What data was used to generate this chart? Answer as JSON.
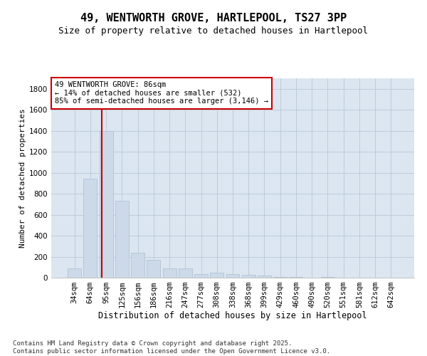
{
  "title1": "49, WENTWORTH GROVE, HARTLEPOOL, TS27 3PP",
  "title2": "Size of property relative to detached houses in Hartlepool",
  "xlabel": "Distribution of detached houses by size in Hartlepool",
  "ylabel": "Number of detached properties",
  "bins": [
    "34sqm",
    "64sqm",
    "95sqm",
    "125sqm",
    "156sqm",
    "186sqm",
    "216sqm",
    "247sqm",
    "277sqm",
    "308sqm",
    "338sqm",
    "368sqm",
    "399sqm",
    "429sqm",
    "460sqm",
    "490sqm",
    "520sqm",
    "551sqm",
    "581sqm",
    "612sqm",
    "642sqm"
  ],
  "values": [
    90,
    940,
    1400,
    730,
    240,
    170,
    90,
    90,
    35,
    50,
    35,
    30,
    20,
    10,
    5,
    0,
    5,
    0,
    0,
    0,
    0
  ],
  "bar_color": "#ccd9e8",
  "bar_edge_color": "#aabdd4",
  "grid_color": "#b8c8d8",
  "bg_color": "#dce6f0",
  "vline_color": "#cc0000",
  "annotation_text": "49 WENTWORTH GROVE: 86sqm\n← 14% of detached houses are smaller (532)\n85% of semi-detached houses are larger (3,146) →",
  "annotation_box_color": "white",
  "annotation_box_edge": "#cc0000",
  "ylim": [
    0,
    1900
  ],
  "yticks": [
    0,
    200,
    400,
    600,
    800,
    1000,
    1200,
    1400,
    1600,
    1800
  ],
  "footer": "Contains HM Land Registry data © Crown copyright and database right 2025.\nContains public sector information licensed under the Open Government Licence v3.0.",
  "title1_fontsize": 11,
  "title2_fontsize": 9,
  "xlabel_fontsize": 8.5,
  "ylabel_fontsize": 8,
  "tick_fontsize": 7.5,
  "annotation_fontsize": 7.5,
  "footer_fontsize": 6.5
}
